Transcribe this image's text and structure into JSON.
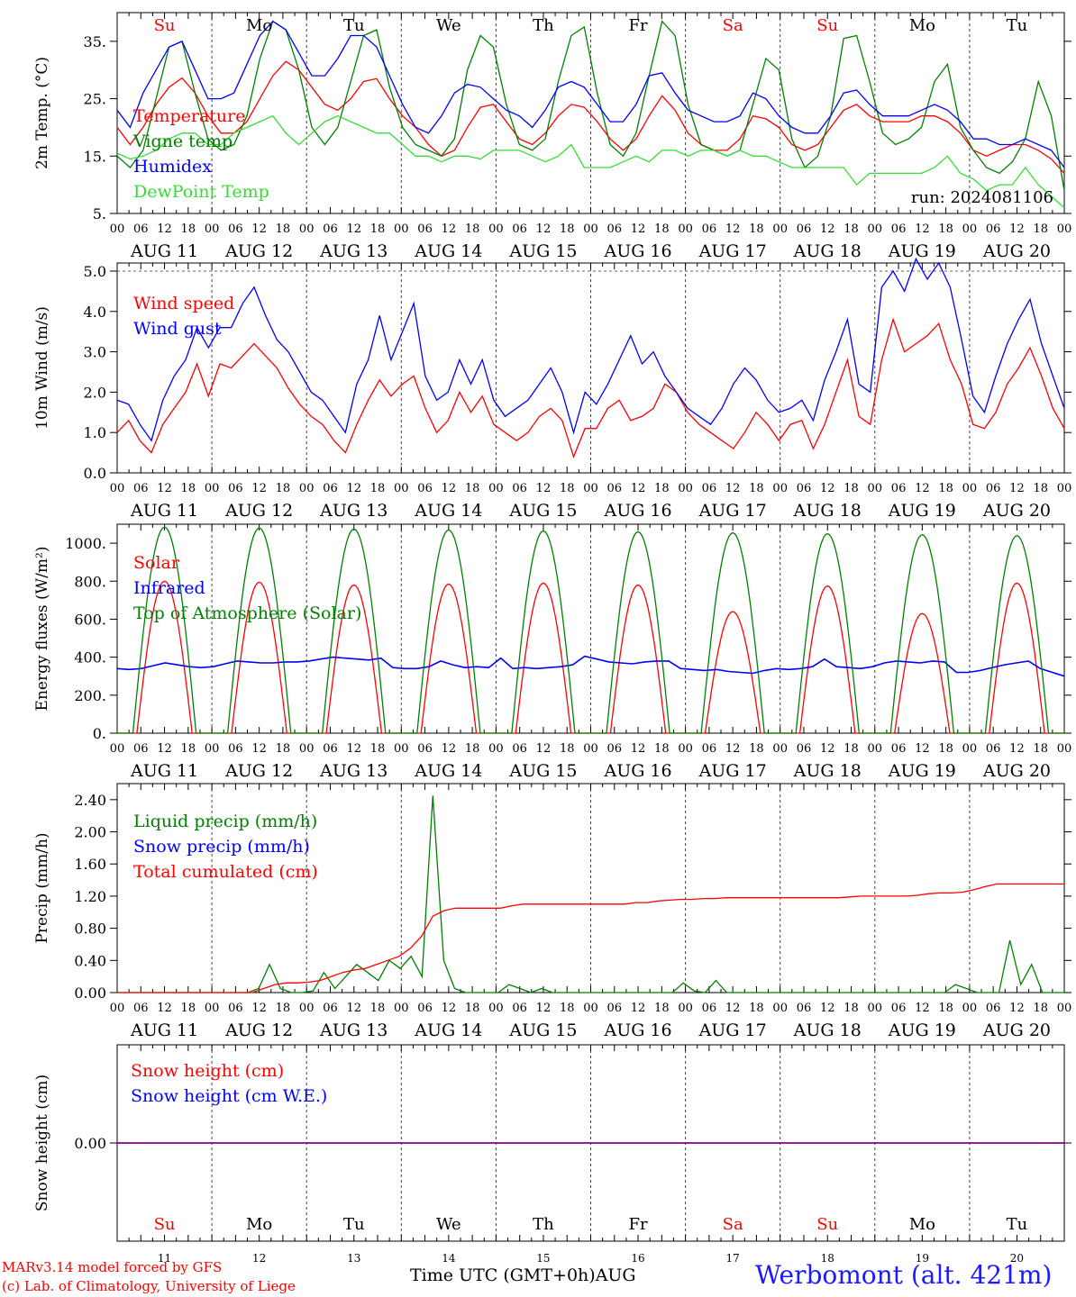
{
  "days": [
    {
      "dow": "Su",
      "date": "AUG 11",
      "num": "11",
      "weekend": true
    },
    {
      "dow": "Mo",
      "date": "AUG 12",
      "num": "12",
      "weekend": false
    },
    {
      "dow": "Tu",
      "date": "AUG 13",
      "num": "13",
      "weekend": false
    },
    {
      "dow": "We",
      "date": "AUG 14",
      "num": "14",
      "weekend": false
    },
    {
      "dow": "Th",
      "date": "AUG 15",
      "num": "15",
      "weekend": false
    },
    {
      "dow": "Fr",
      "date": "AUG 16",
      "num": "16",
      "weekend": false
    },
    {
      "dow": "Sa",
      "date": "AUG 17",
      "num": "17",
      "weekend": true
    },
    {
      "dow": "Su",
      "date": "AUG 18",
      "num": "18",
      "weekend": true
    },
    {
      "dow": "Mo",
      "date": "AUG 19",
      "num": "19",
      "weekend": false
    },
    {
      "dow": "Tu",
      "date": "AUG 20",
      "num": "20",
      "weekend": false
    }
  ],
  "hour_ticks": [
    "00",
    "06",
    "12",
    "18"
  ],
  "colors": {
    "red": "#ff0000",
    "green": "#008000",
    "blue": "#0000ff",
    "lime": "#33dd33",
    "purple": "#7f007f",
    "weekend": "#ff0000"
  },
  "chart_data": [
    {
      "type": "line",
      "ylabel": "2m Temp. (°C)",
      "ylim": [
        5,
        40
      ],
      "yticks": [
        5,
        15,
        25,
        35
      ],
      "ytick_labels": [
        "5.",
        "15.",
        "25.",
        "35."
      ],
      "annotation": "run: 2024081106",
      "series": [
        {
          "name": "Temperature",
          "color": "red",
          "values": [
            20,
            17,
            20,
            24,
            27,
            28.6,
            26,
            22,
            19,
            19,
            21,
            25,
            29,
            31.5,
            30,
            27,
            24,
            23,
            25,
            28,
            28.5,
            25,
            22,
            20,
            17,
            15,
            16,
            20,
            23.5,
            24,
            21,
            18,
            17,
            19,
            22,
            24,
            23.5,
            21,
            18,
            16,
            18,
            22,
            25.5,
            23,
            19,
            17,
            16,
            16,
            18,
            22,
            21.5,
            20,
            17,
            16,
            17,
            20,
            23,
            24,
            22,
            21,
            21,
            21,
            22,
            22,
            21,
            19,
            16,
            15,
            16,
            17,
            17,
            16,
            14.5,
            12
          ]
        },
        {
          "name": "Vigne temp",
          "color": "green",
          "values": [
            15,
            13,
            16,
            25,
            34,
            35,
            26,
            18,
            16,
            17,
            22,
            32,
            38.5,
            37,
            30,
            20,
            17,
            20,
            28,
            36,
            37,
            27,
            20,
            17,
            16,
            15,
            18,
            30,
            36,
            34,
            24,
            17,
            16,
            18,
            28,
            36,
            37.5,
            26,
            17,
            15,
            19,
            29,
            38.5,
            36,
            24,
            17,
            16,
            15,
            16,
            24,
            32,
            30,
            18,
            13,
            15,
            22,
            35.5,
            36,
            28,
            19,
            17,
            18,
            20,
            28,
            31,
            20,
            16,
            13,
            12,
            14,
            18,
            28,
            22,
            9
          ]
        },
        {
          "name": "Humidex",
          "color": "blue",
          "values": [
            23,
            20,
            26,
            30,
            34,
            35,
            30,
            25,
            25,
            26,
            31,
            36,
            38.5,
            37,
            33,
            29,
            29,
            32,
            36,
            36,
            34,
            29,
            24,
            20,
            19,
            22,
            26,
            27.5,
            27,
            25,
            23,
            22,
            20,
            23,
            27,
            28,
            27,
            24,
            21,
            21,
            24,
            29,
            29.5,
            26,
            23,
            22,
            21,
            21,
            22,
            26,
            25,
            22,
            20,
            19,
            19,
            22,
            26,
            26.5,
            24,
            22,
            22,
            22,
            23,
            24,
            23,
            21,
            18,
            18,
            17,
            17,
            18,
            17,
            16,
            13
          ]
        },
        {
          "name": "DewPoint Temp",
          "color": "lime",
          "values": [
            15.5,
            14.5,
            15,
            16,
            18,
            19,
            19,
            17,
            17,
            19,
            20,
            21,
            22,
            19,
            17,
            19,
            21,
            22,
            21,
            20,
            19,
            19,
            17,
            15,
            15,
            14,
            15,
            15,
            14.5,
            16,
            16,
            16,
            15,
            14,
            15,
            17,
            13,
            13,
            13,
            14,
            15,
            14,
            16,
            16,
            15,
            16,
            16,
            15,
            16,
            15,
            15,
            14,
            13,
            13,
            13,
            13,
            13,
            10,
            12,
            12,
            12,
            12,
            12,
            13,
            15,
            12,
            11,
            9,
            10,
            10,
            13,
            10,
            8,
            6
          ]
        }
      ]
    },
    {
      "type": "line",
      "ylabel": "10m Wind (m/s)",
      "ylim": [
        0,
        5.2
      ],
      "yticks": [
        0,
        1,
        2,
        3,
        4,
        5
      ],
      "ytick_labels": [
        "0.0",
        "1.0",
        "2.0",
        "3.0",
        "4.0",
        "5.0"
      ],
      "series": [
        {
          "name": "Wind speed",
          "color": "red",
          "values": [
            1.0,
            1.3,
            0.8,
            0.5,
            1.2,
            1.6,
            2.0,
            2.7,
            1.9,
            2.7,
            2.6,
            2.9,
            3.2,
            2.9,
            2.6,
            2.1,
            1.7,
            1.4,
            1.2,
            0.8,
            0.5,
            1.2,
            1.8,
            2.3,
            1.9,
            2.2,
            2.4,
            1.6,
            1.0,
            1.3,
            2.0,
            1.5,
            1.9,
            1.2,
            1.0,
            0.8,
            1.0,
            1.4,
            1.6,
            1.3,
            0.4,
            1.1,
            1.1,
            1.6,
            1.8,
            1.3,
            1.4,
            1.6,
            2.2,
            2.0,
            1.5,
            1.2,
            1.0,
            0.8,
            0.6,
            1.0,
            1.5,
            1.2,
            0.8,
            1.2,
            1.3,
            0.6,
            1.2,
            2.0,
            2.8,
            1.4,
            1.2,
            2.8,
            3.8,
            3.0,
            3.2,
            3.4,
            3.7,
            2.8,
            2.2,
            1.2,
            1.1,
            1.5,
            2.2,
            2.6,
            3.1,
            2.4,
            1.6,
            1.1
          ]
        },
        {
          "name": "Wind gust",
          "color": "blue",
          "values": [
            1.8,
            1.7,
            1.2,
            0.8,
            1.8,
            2.4,
            2.8,
            3.6,
            3.1,
            3.6,
            3.6,
            4.2,
            4.6,
            3.9,
            3.3,
            3.0,
            2.5,
            2.0,
            1.8,
            1.4,
            1.0,
            2.2,
            2.8,
            3.9,
            2.8,
            3.5,
            4.2,
            2.4,
            1.8,
            2.0,
            2.8,
            2.2,
            2.8,
            1.8,
            1.4,
            1.6,
            1.8,
            2.2,
            2.6,
            2.0,
            1.0,
            2.0,
            1.7,
            2.2,
            2.8,
            3.4,
            2.7,
            3.0,
            2.4,
            2.0,
            1.6,
            1.4,
            1.2,
            1.6,
            2.2,
            2.6,
            2.3,
            1.8,
            1.5,
            1.6,
            1.8,
            1.3,
            2.3,
            3.0,
            3.8,
            2.2,
            2.0,
            4.6,
            5.0,
            4.5,
            5.3,
            4.8,
            5.2,
            4.6,
            3.3,
            1.9,
            1.5,
            2.4,
            3.2,
            3.8,
            4.3,
            3.2,
            2.4,
            1.6
          ]
        }
      ]
    },
    {
      "type": "line",
      "ylabel": "Energy fluxes (W/m²)",
      "ylim": [
        0,
        1100
      ],
      "yticks": [
        0,
        200,
        400,
        600,
        800,
        1000
      ],
      "ytick_labels": [
        "0.",
        "200.",
        "400.",
        "600.",
        "800.",
        "1000."
      ],
      "series": [
        {
          "name": "Solar",
          "color": "red",
          "daily_max": [
            800,
            795,
            780,
            785,
            790,
            780,
            640,
            775,
            630,
            790
          ]
        },
        {
          "name": "Infrared",
          "color": "blue",
          "values": [
            340,
            335,
            340,
            355,
            370,
            360,
            350,
            345,
            350,
            365,
            380,
            375,
            370,
            370,
            375,
            375,
            380,
            390,
            400,
            395,
            390,
            385,
            395,
            345,
            340,
            340,
            350,
            380,
            360,
            345,
            350,
            345,
            395,
            340,
            345,
            340,
            345,
            350,
            360,
            405,
            390,
            375,
            370,
            365,
            375,
            380,
            380,
            340,
            335,
            330,
            335,
            325,
            320,
            315,
            330,
            340,
            335,
            340,
            350,
            390,
            350,
            345,
            340,
            350,
            370,
            380,
            375,
            370,
            380,
            375,
            320,
            320,
            330,
            345,
            360,
            370,
            380,
            340,
            320,
            300
          ]
        },
        {
          "name": "Top of Atmosphere (Solar)",
          "color": "green",
          "daily_max": [
            1085,
            1080,
            1075,
            1070,
            1065,
            1060,
            1055,
            1050,
            1045,
            1040
          ]
        }
      ]
    },
    {
      "type": "line",
      "ylabel": "Precip (mm/h)",
      "ylim": [
        0,
        2.6
      ],
      "yticks": [
        0,
        0.4,
        0.8,
        1.2,
        1.6,
        2.0,
        2.4
      ],
      "ytick_labels": [
        "0.00",
        "0.40",
        "0.80",
        "1.20",
        "1.60",
        "2.00",
        "2.40"
      ],
      "series": [
        {
          "name": "Liquid precip (mm/h)",
          "color": "green",
          "values": [
            0,
            0,
            0,
            0,
            0,
            0,
            0,
            0,
            0,
            0,
            0,
            0,
            0,
            0.05,
            0.35,
            0.05,
            0,
            0,
            0.02,
            0.25,
            0.05,
            0.2,
            0.35,
            0.25,
            0.15,
            0.4,
            0.3,
            0.45,
            0.2,
            2.45,
            0.4,
            0.05,
            0,
            0,
            0,
            0,
            0.1,
            0.05,
            0,
            0.05,
            0,
            0,
            0,
            0,
            0,
            0,
            0,
            0,
            0,
            0,
            0,
            0,
            0.12,
            0.02,
            0,
            0.15,
            0,
            0,
            0,
            0,
            0,
            0,
            0,
            0,
            0,
            0,
            0,
            0,
            0,
            0,
            0,
            0,
            0,
            0,
            0,
            0,
            0,
            0.1,
            0.05,
            0,
            0,
            0,
            0.65,
            0.1,
            0.35,
            0,
            0,
            0
          ]
        },
        {
          "name": "Snow precip (mm/h)",
          "color": "blue",
          "values": []
        },
        {
          "name": "Total cumulated (cm)",
          "color": "red",
          "values": [
            0,
            0,
            0,
            0,
            0,
            0,
            0,
            0,
            0,
            0,
            0,
            0,
            0,
            0.05,
            0.1,
            0.12,
            0.12,
            0.13,
            0.15,
            0.2,
            0.25,
            0.28,
            0.3,
            0.35,
            0.4,
            0.45,
            0.55,
            0.7,
            0.95,
            1.02,
            1.05,
            1.05,
            1.05,
            1.05,
            1.05,
            1.08,
            1.1,
            1.1,
            1.1,
            1.1,
            1.1,
            1.1,
            1.1,
            1.1,
            1.1,
            1.1,
            1.12,
            1.12,
            1.14,
            1.15,
            1.16,
            1.16,
            1.17,
            1.17,
            1.18,
            1.18,
            1.18,
            1.18,
            1.18,
            1.18,
            1.18,
            1.18,
            1.18,
            1.18,
            1.18,
            1.19,
            1.2,
            1.2,
            1.2,
            1.2,
            1.2,
            1.21,
            1.23,
            1.24,
            1.24,
            1.25,
            1.28,
            1.32,
            1.35,
            1.35,
            1.35,
            1.35,
            1.35,
            1.35,
            1.35
          ]
        }
      ]
    },
    {
      "type": "line",
      "ylabel": "Snow height (cm)",
      "ylim": [
        -1,
        1
      ],
      "yticks": [
        0
      ],
      "ytick_labels": [
        "0.00"
      ],
      "series": [
        {
          "name": "Snow height (cm)",
          "color": "red",
          "values": [
            0,
            0
          ]
        },
        {
          "name": "Snow height (cm W.E.)",
          "color": "blue",
          "values": [
            0,
            0
          ]
        }
      ]
    }
  ],
  "footer": {
    "credit_line1": "MARv3.14 model forced by GFS",
    "credit_line2": "(c) Lab. of Climatology, University of Liege",
    "xaxis_title": "Time UTC (GMT+0h)AUG",
    "location": "Werbomont (alt. 421m)"
  }
}
